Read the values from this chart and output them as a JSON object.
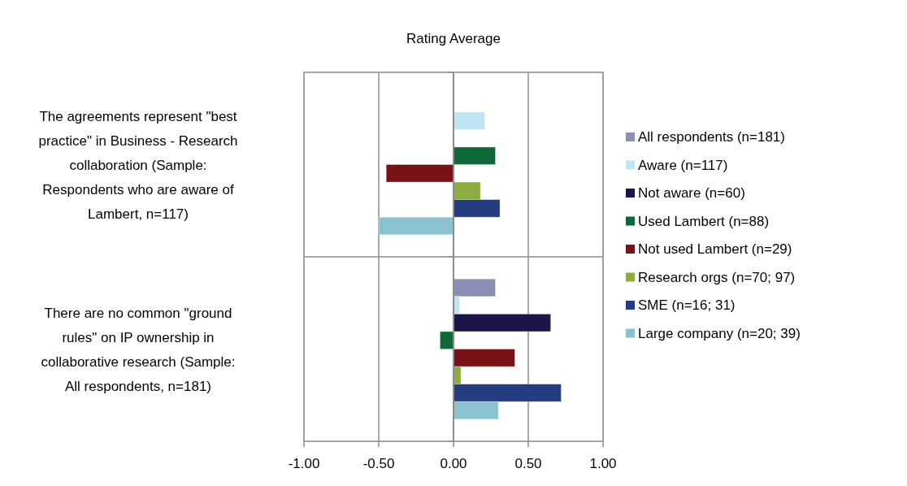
{
  "chart_data": {
    "type": "bar",
    "orientation": "horizontal",
    "title": "Rating Average",
    "categories": [
      "The agreements represent \"best practice\" in Business - Research collaboration (Sample: Respondents who are aware of Lambert, n=117)",
      "There are no common \"ground rules\" on IP ownership in collaborative research (Sample: All respondents, n=181)"
    ],
    "series": [
      {
        "name": "All respondents (n=181)",
        "color": "#8a8fb5",
        "values": [
          null,
          0.28
        ]
      },
      {
        "name": "Aware (n=117)",
        "color": "#bfe4f2",
        "values": [
          0.21,
          0.04
        ]
      },
      {
        "name": "Not aware  (n=60)",
        "color": "#1b1549",
        "values": [
          null,
          0.65
        ]
      },
      {
        "name": "Used Lambert  (n=88)",
        "color": "#106838",
        "values": [
          0.28,
          -0.09
        ]
      },
      {
        "name": "Not used Lambert (n=29)",
        "color": "#7a1117",
        "values": [
          -0.45,
          0.41
        ]
      },
      {
        "name": "Research orgs (n=70; 97)",
        "color": "#8cad3f",
        "values": [
          0.18,
          0.05
        ]
      },
      {
        "name": "SME (n=16; 31)",
        "color": "#243c80",
        "values": [
          0.31,
          0.72
        ]
      },
      {
        "name": "Large company (n=20; 39)",
        "color": "#8bc2d0",
        "values": [
          -0.5,
          0.3
        ]
      }
    ],
    "xlim": [
      -1,
      1
    ],
    "xticks": [
      {
        "value": -1,
        "label": "-1.00"
      },
      {
        "value": -0.5,
        "label": "-0.50"
      },
      {
        "value": 0,
        "label": "0.00"
      },
      {
        "value": 0.5,
        "label": "0.50"
      },
      {
        "value": 1,
        "label": "1.00"
      }
    ],
    "grid": true,
    "legend": "right"
  }
}
